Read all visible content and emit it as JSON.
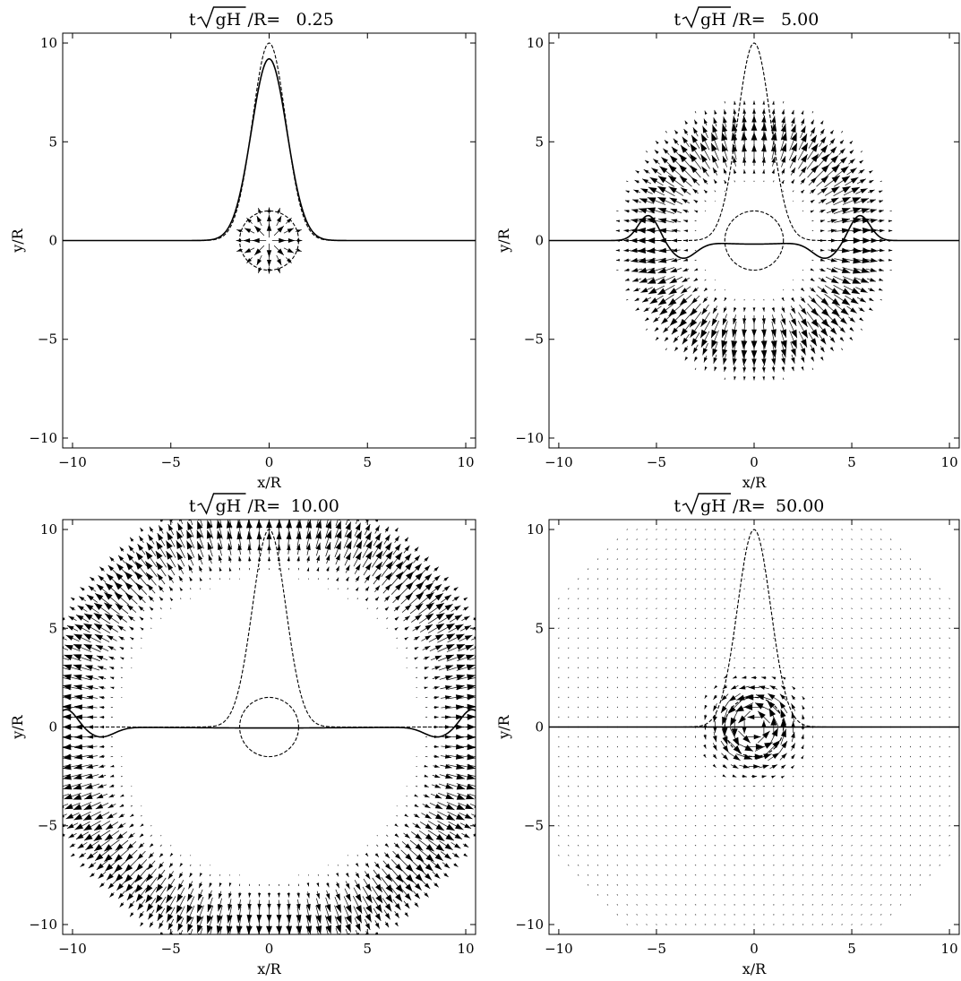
{
  "chart_data": [
    {
      "type": "scatter",
      "title_prefix": "t",
      "title_radicand": "gH",
      "title_suffix": "/R=",
      "title_value": "0.25",
      "xlabel": "x/R",
      "ylabel": "y/R",
      "xlim": [
        -10.5,
        10.5
      ],
      "ylim": [
        -10.5,
        10.5
      ],
      "xticks": [
        -10,
        -5,
        0,
        5,
        10
      ],
      "yticks": [
        -10,
        -5,
        0,
        5,
        10
      ],
      "grid": false,
      "ring_radius": 1.5,
      "vector_field": {
        "kind": "radial",
        "wave_radius": 0.6,
        "width": 1.1,
        "amplitude": 0.7,
        "extent": 1.8
      },
      "profile_dashed": {
        "peak": 10,
        "sigma": 0.85
      },
      "profile_solid": {
        "kind": "gaussian",
        "peak": 9.2,
        "sigma": 0.9
      }
    },
    {
      "type": "scatter",
      "title_prefix": "t",
      "title_radicand": "gH",
      "title_suffix": "/R=",
      "title_value": "5.00",
      "xlabel": "x/R",
      "ylabel": "y/R",
      "xlim": [
        -10.5,
        10.5
      ],
      "ylim": [
        -10.5,
        10.5
      ],
      "xticks": [
        -10,
        -5,
        0,
        5,
        10
      ],
      "yticks": [
        -10,
        -5,
        0,
        5,
        10
      ],
      "grid": false,
      "ring_radius": 1.5,
      "vector_field": {
        "kind": "radial",
        "wave_radius": 5.2,
        "width": 1.3,
        "amplitude": 1.0,
        "extent": 7.2
      },
      "profile_dashed": {
        "peak": 10,
        "sigma": 0.85
      },
      "profile_solid": {
        "kind": "wave",
        "front": 5.4,
        "crest": 1.3,
        "trough": -0.85,
        "inner": -0.18
      }
    },
    {
      "type": "scatter",
      "title_prefix": "t",
      "title_radicand": "gH",
      "title_suffix": "/R=",
      "title_value": "10.00",
      "xlabel": "x/R",
      "ylabel": "y/R",
      "xlim": [
        -10.5,
        10.5
      ],
      "ylim": [
        -10.5,
        10.5
      ],
      "xticks": [
        -10,
        -5,
        0,
        5,
        10
      ],
      "yticks": [
        -10,
        -5,
        0,
        5,
        10
      ],
      "grid": false,
      "ring_radius": 1.5,
      "vector_field": {
        "kind": "radial",
        "wave_radius": 10.2,
        "width": 1.4,
        "amplitude": 1.0,
        "extent": 12.0
      },
      "profile_dashed": {
        "peak": 10,
        "sigma": 0.85
      },
      "profile_solid": {
        "kind": "wave",
        "front": 10.3,
        "crest": 0.9,
        "trough": -0.5,
        "inner": -0.05
      }
    },
    {
      "type": "scatter",
      "title_prefix": "t",
      "title_radicand": "gH",
      "title_suffix": "/R=",
      "title_value": "50.00",
      "xlabel": "x/R",
      "ylabel": "y/R",
      "xlim": [
        -10.5,
        10.5
      ],
      "ylim": [
        -10.5,
        10.5
      ],
      "xticks": [
        -10,
        -5,
        0,
        5,
        10
      ],
      "yticks": [
        -10,
        -5,
        0,
        5,
        10
      ],
      "grid": false,
      "ring_radius": 1.5,
      "vector_field": {
        "kind": "vortex",
        "core": 1.1,
        "amplitude": 1.0,
        "extent": 12.0
      },
      "profile_dashed": {
        "peak": 10,
        "sigma": 0.85
      },
      "profile_solid": {
        "kind": "flat"
      }
    }
  ]
}
